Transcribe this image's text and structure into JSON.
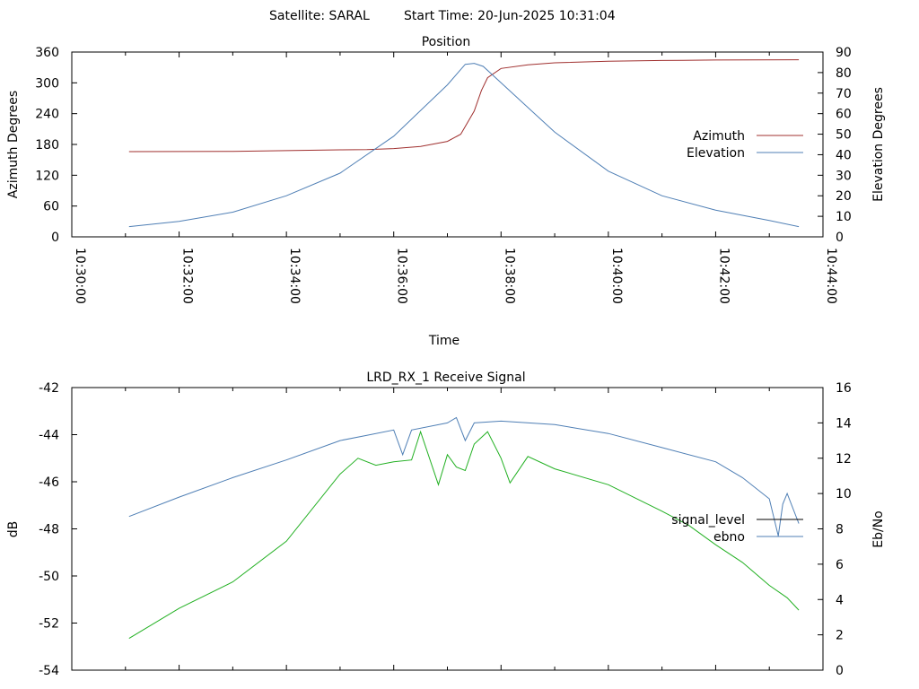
{
  "header": {
    "satellite_text": "Satellite: SARAL",
    "start_time_text": "Start Time: 20-Jun-2025 10:31:04"
  },
  "chart_data": [
    {
      "type": "line",
      "title": "Position",
      "xlabel": "Time",
      "ylabel": "Azimuth Degrees",
      "y2label": "Elevation Degrees",
      "xlim": [
        "10:30:00",
        "10:44:00"
      ],
      "ylim": [
        0,
        360
      ],
      "y2lim": [
        0,
        90
      ],
      "x_tick_labels": [
        "10:30:00",
        "10:32:00",
        "10:34:00",
        "10:36:00",
        "10:38:00",
        "10:40:00",
        "10:42:00",
        "10:44:00"
      ],
      "y_tick_labels": [
        "0",
        "60",
        "120",
        "180",
        "240",
        "300",
        "360"
      ],
      "y2_tick_labels": [
        "0",
        "10",
        "20",
        "30",
        "40",
        "50",
        "60",
        "70",
        "80",
        "90"
      ],
      "grid": false,
      "legend_position": "right",
      "series": [
        {
          "name": "Azimuth",
          "axis": "y",
          "color": "#a0302f",
          "points": [
            [
              "10:31:04",
              166
            ],
            [
              "10:33:00",
              166.5
            ],
            [
              "10:34:00",
              168
            ],
            [
              "10:35:00",
              169.5
            ],
            [
              "10:35:30",
              170
            ],
            [
              "10:36:00",
              172
            ],
            [
              "10:36:30",
              176
            ],
            [
              "10:37:00",
              186
            ],
            [
              "10:37:15",
              200
            ],
            [
              "10:37:30",
              245
            ],
            [
              "10:37:38",
              285
            ],
            [
              "10:37:45",
              310
            ],
            [
              "10:38:00",
              328
            ],
            [
              "10:38:30",
              335
            ],
            [
              "10:39:00",
              339
            ],
            [
              "10:40:00",
              342
            ],
            [
              "10:41:00",
              343.5
            ],
            [
              "10:42:00",
              344.5
            ],
            [
              "10:43:33",
              345
            ]
          ]
        },
        {
          "name": "Elevation",
          "axis": "y2",
          "color": "#4f7fb5",
          "points": [
            [
              "10:31:04",
              5
            ],
            [
              "10:32:00",
              7.5
            ],
            [
              "10:33:00",
              12
            ],
            [
              "10:34:00",
              20
            ],
            [
              "10:35:00",
              31
            ],
            [
              "10:36:00",
              49
            ],
            [
              "10:37:00",
              74
            ],
            [
              "10:37:20",
              84
            ],
            [
              "10:37:30",
              84.5
            ],
            [
              "10:37:40",
              83
            ],
            [
              "10:38:00",
              75
            ],
            [
              "10:39:00",
              51
            ],
            [
              "10:40:00",
              32
            ],
            [
              "10:41:00",
              20
            ],
            [
              "10:42:00",
              13
            ],
            [
              "10:43:00",
              8
            ],
            [
              "10:43:33",
              5
            ]
          ]
        }
      ]
    },
    {
      "type": "line",
      "title": "LRD_RX_1 Receive Signal",
      "xlabel": "",
      "ylabel": "dB",
      "y2label": "Eb/No",
      "xlim": [
        "10:30:00",
        "10:44:00"
      ],
      "ylim": [
        -54,
        -42
      ],
      "y2lim": [
        0,
        16
      ],
      "y_tick_labels": [
        "-54",
        "-52",
        "-50",
        "-48",
        "-46",
        "-44",
        "-42"
      ],
      "y2_tick_labels": [
        "0",
        "2",
        "4",
        "6",
        "8",
        "10",
        "12",
        "14",
        "16"
      ],
      "grid": false,
      "legend_position": "right",
      "series": [
        {
          "name": "signal_level",
          "axis": "y",
          "color": "#000000",
          "points": []
        },
        {
          "name": "ebno",
          "axis": "y2",
          "color": "#4f7fb5",
          "points": [
            [
              "10:31:04",
              8.7
            ],
            [
              "10:32:00",
              9.8
            ],
            [
              "10:33:00",
              10.9
            ],
            [
              "10:34:00",
              11.9
            ],
            [
              "10:35:00",
              13.0
            ],
            [
              "10:35:30",
              13.3
            ],
            [
              "10:36:00",
              13.6
            ],
            [
              "10:36:10",
              12.2
            ],
            [
              "10:36:20",
              13.6
            ],
            [
              "10:37:00",
              14.0
            ],
            [
              "10:37:10",
              14.3
            ],
            [
              "10:37:20",
              13.0
            ],
            [
              "10:37:30",
              14.0
            ],
            [
              "10:38:00",
              14.1
            ],
            [
              "10:39:00",
              13.9
            ],
            [
              "10:40:00",
              13.4
            ],
            [
              "10:41:00",
              12.6
            ],
            [
              "10:42:00",
              11.8
            ],
            [
              "10:42:30",
              10.9
            ],
            [
              "10:43:00",
              9.7
            ],
            [
              "10:43:10",
              7.6
            ],
            [
              "10:43:15",
              9.4
            ],
            [
              "10:43:20",
              10.0
            ],
            [
              "10:43:33",
              8.3
            ]
          ]
        },
        {
          "name": "",
          "axis": "y2",
          "color": "#22b022",
          "points": [
            [
              "10:31:04",
              1.8
            ],
            [
              "10:32:00",
              3.5
            ],
            [
              "10:33:00",
              5.0
            ],
            [
              "10:34:00",
              7.3
            ],
            [
              "10:35:00",
              11.1
            ],
            [
              "10:35:20",
              12.0
            ],
            [
              "10:35:40",
              11.6
            ],
            [
              "10:36:00",
              11.8
            ],
            [
              "10:36:20",
              11.9
            ],
            [
              "10:36:30",
              13.5
            ],
            [
              "10:36:50",
              10.5
            ],
            [
              "10:37:00",
              12.2
            ],
            [
              "10:37:10",
              11.5
            ],
            [
              "10:37:20",
              11.3
            ],
            [
              "10:37:30",
              12.8
            ],
            [
              "10:37:45",
              13.5
            ],
            [
              "10:38:00",
              12.0
            ],
            [
              "10:38:10",
              10.6
            ],
            [
              "10:38:30",
              12.1
            ],
            [
              "10:39:00",
              11.4
            ],
            [
              "10:40:00",
              10.5
            ],
            [
              "10:41:00",
              9.0
            ],
            [
              "10:41:30",
              8.2
            ],
            [
              "10:42:00",
              7.1
            ],
            [
              "10:42:30",
              6.1
            ],
            [
              "10:43:00",
              4.8
            ],
            [
              "10:43:20",
              4.1
            ],
            [
              "10:43:33",
              3.4
            ]
          ]
        }
      ]
    }
  ]
}
